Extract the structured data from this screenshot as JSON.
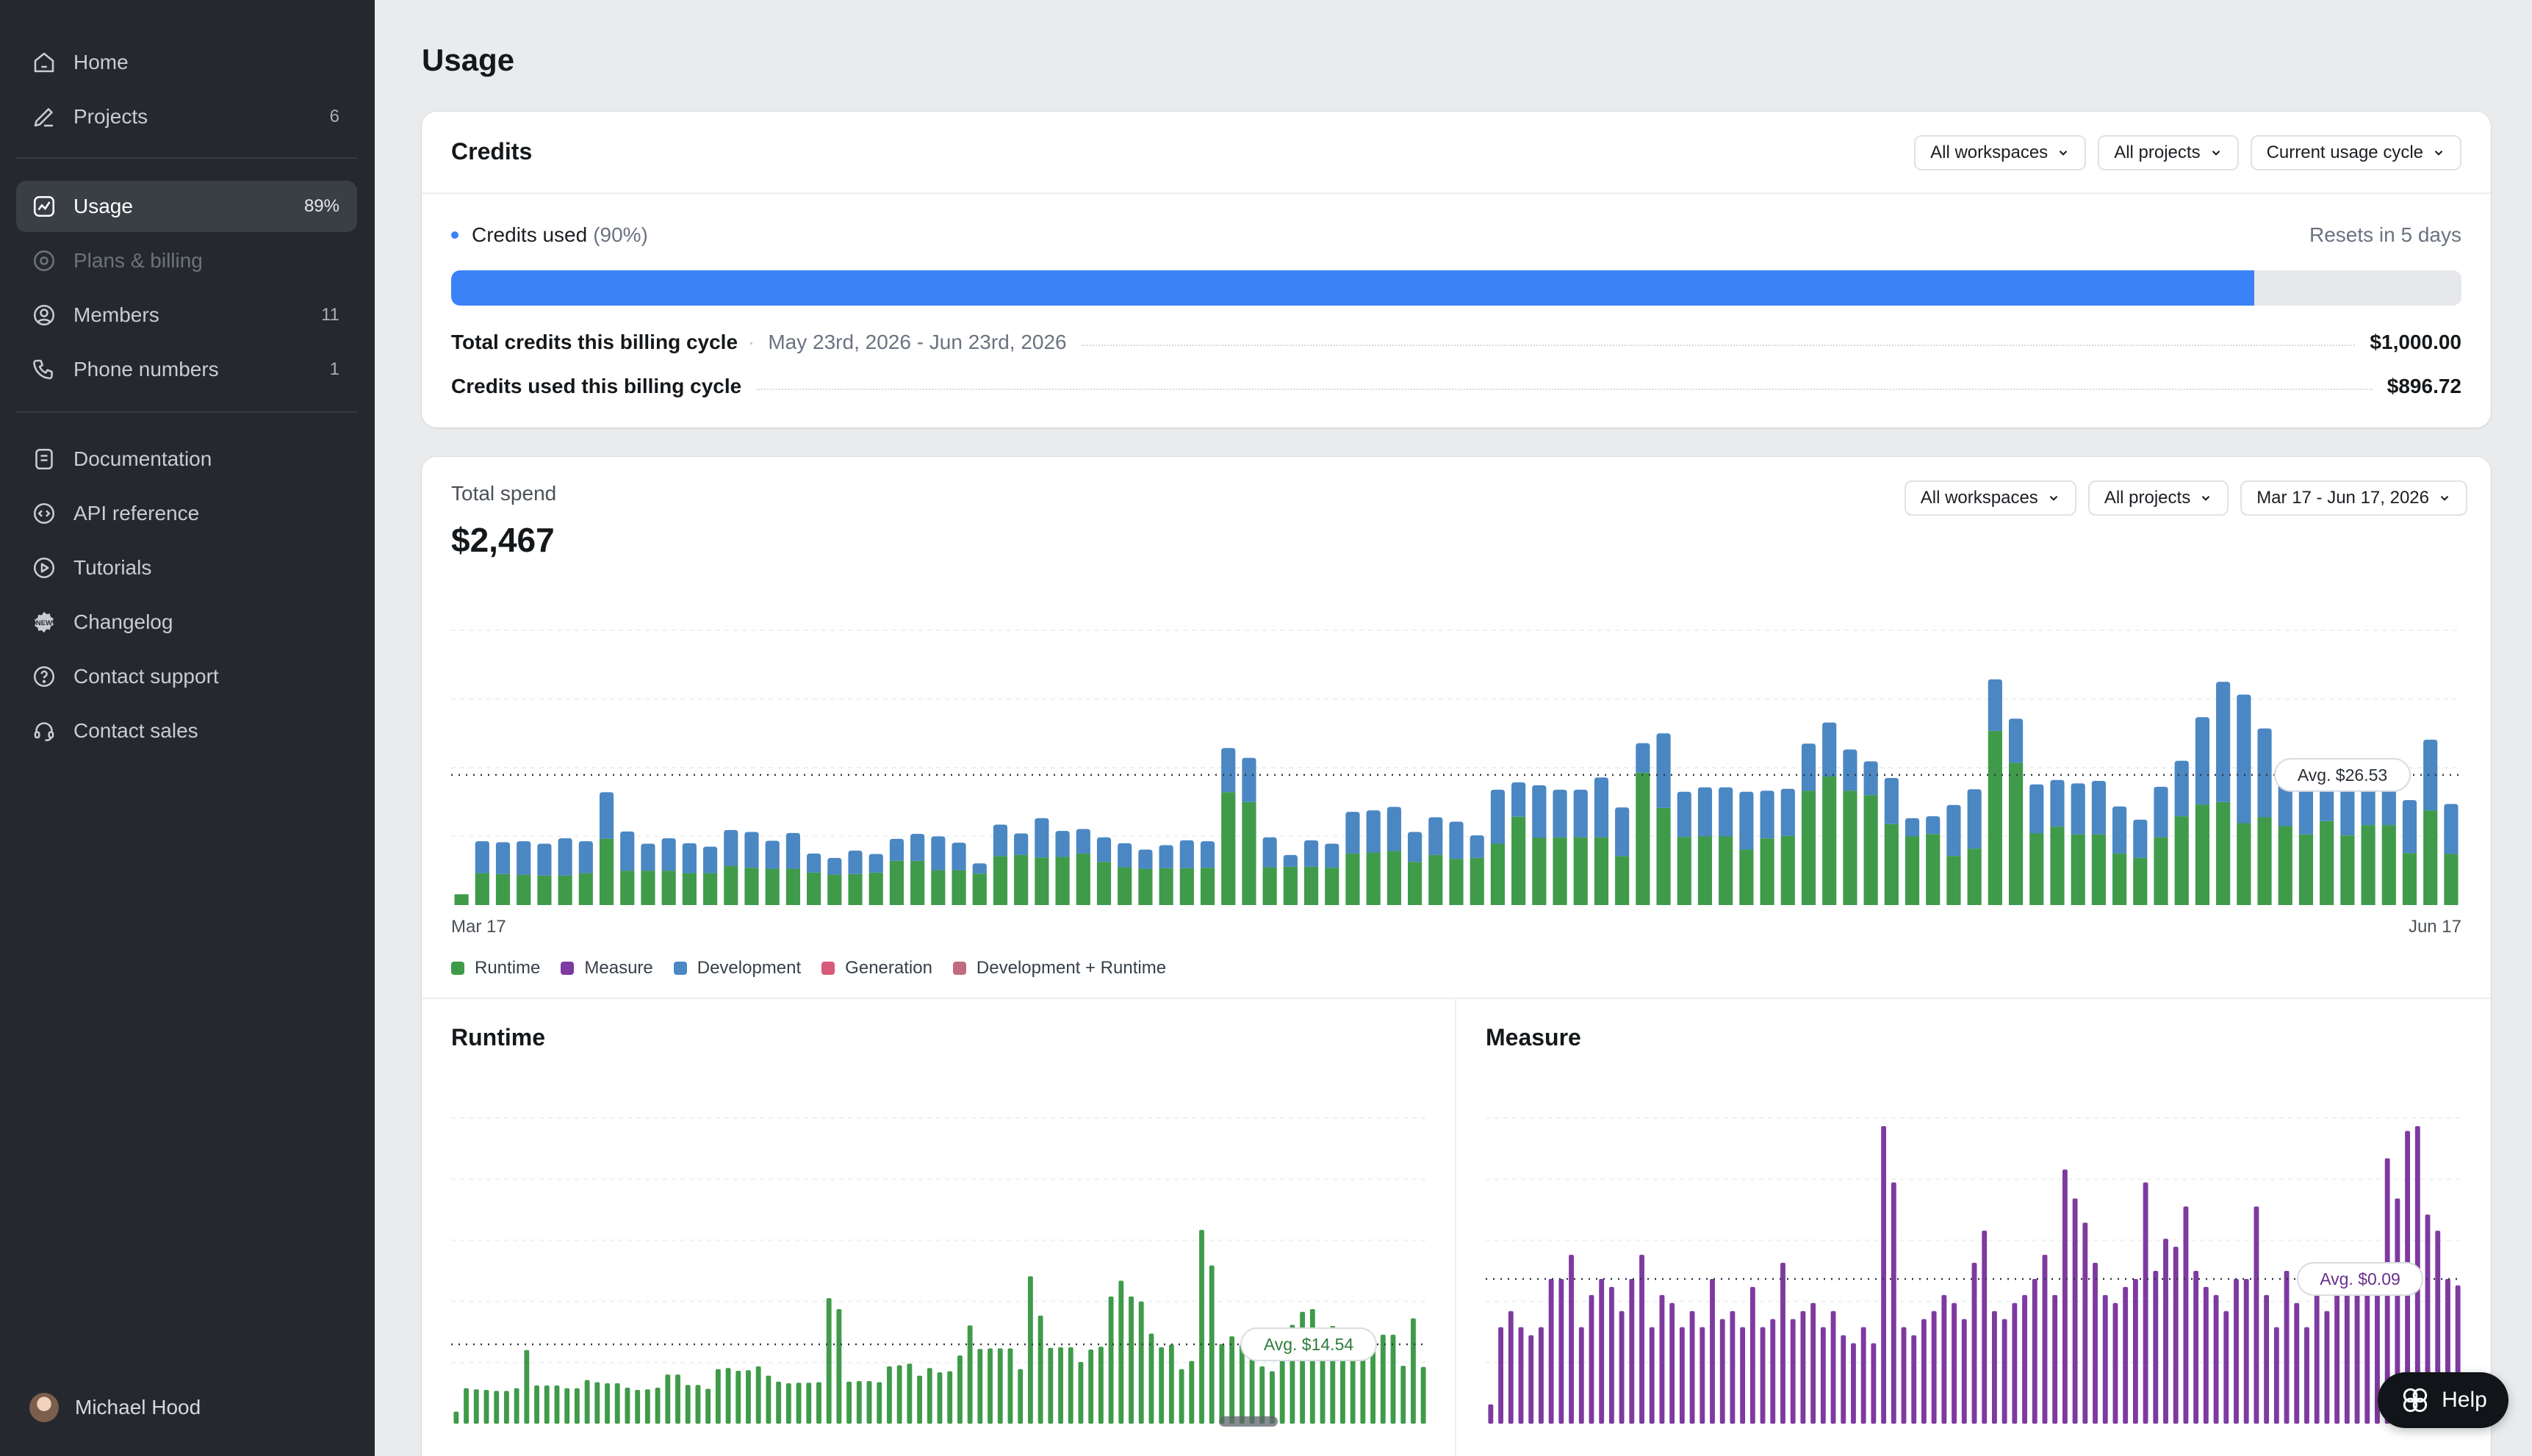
{
  "sidebar": {
    "items": [
      {
        "label": "Home",
        "count": "",
        "icon": "home-icon"
      },
      {
        "label": "Projects",
        "count": "6",
        "icon": "pencil-icon"
      },
      {
        "label": "Usage",
        "count": "89%",
        "icon": "chart-icon",
        "active": true
      },
      {
        "label": "Plans & billing",
        "count": "",
        "icon": "billing-icon",
        "disabled": true
      },
      {
        "label": "Members",
        "count": "11",
        "icon": "user-circle-icon"
      },
      {
        "label": "Phone numbers",
        "count": "1",
        "icon": "phone-icon"
      },
      {
        "label": "Documentation",
        "count": "",
        "icon": "document-icon"
      },
      {
        "label": "API reference",
        "count": "",
        "icon": "code-icon"
      },
      {
        "label": "Tutorials",
        "count": "",
        "icon": "play-icon"
      },
      {
        "label": "Changelog",
        "count": "",
        "icon": "new-badge-icon"
      },
      {
        "label": "Contact support",
        "count": "",
        "icon": "question-icon"
      },
      {
        "label": "Contact sales",
        "count": "",
        "icon": "headset-icon"
      }
    ],
    "user_name": "Michael Hood"
  },
  "page": {
    "title": "Usage"
  },
  "credits": {
    "title": "Credits",
    "filters": [
      "All workspaces",
      "All projects",
      "Current usage cycle"
    ],
    "used_label": "Credits used",
    "used_pct_text": "(90%)",
    "used_fraction": 0.897,
    "resets": "Resets in 5 days",
    "total_label": "Total credits this billing cycle",
    "total_range": "May 23rd, 2026 - Jun 23rd, 2026",
    "total_value": "$1,000.00",
    "used_cycle_label": "Credits used this billing cycle",
    "used_cycle_value": "$896.72"
  },
  "spend": {
    "label": "Total spend",
    "value": "$2,467",
    "filters": [
      "All workspaces",
      "All projects",
      "Mar 17 - Jun 17, 2026"
    ],
    "x_start": "Mar 17",
    "x_end": "Jun 17",
    "legend": [
      {
        "name": "Runtime",
        "color": "#3f9b4a"
      },
      {
        "name": "Measure",
        "color": "#7e3aa0"
      },
      {
        "name": "Development",
        "color": "#4b87c3"
      },
      {
        "name": "Generation",
        "color": "#d85a7a"
      },
      {
        "name": "Development + Runtime",
        "color": "#c26a7d"
      }
    ],
    "runtime_title": "Runtime",
    "measure_title": "Measure"
  },
  "help": {
    "label": "Help"
  },
  "colors": {
    "accent": "#3b82f6",
    "runtime": "#3f9b4a",
    "development": "#4b87c3",
    "measure": "#7e3aa0",
    "sidebar": "#25292e"
  },
  "chart_data": [
    {
      "type": "bar",
      "title": "Total spend",
      "stacked": true,
      "x_range": [
        "Mar 17",
        "Jun 17"
      ],
      "avg_label": "Avg. $26.53",
      "avg": 26.53,
      "ylim": [
        0,
        56
      ],
      "series": [
        {
          "name": "Runtime",
          "values": [
            2.2,
            6.5,
            6.3,
            6.2,
            6,
            6,
            6.5,
            13.5,
            7,
            7,
            7,
            6.5,
            6.5,
            8,
            7.6,
            7.4,
            7.4,
            6.6,
            6.2,
            6.3,
            6.6,
            9,
            9,
            7.1,
            7.1,
            6.4,
            10,
            10.2,
            9.7,
            9.8,
            10.5,
            8.8,
            7.7,
            7.4,
            7.5,
            7.5,
            7.6,
            23,
            21,
            7.7,
            7.8,
            7.8,
            7.6,
            10.5,
            10.7,
            11,
            8.8,
            10.2,
            9.4,
            9.6,
            12.5,
            18,
            13.7,
            13.8,
            13.8,
            13.8,
            10,
            27,
            19.8,
            13.9,
            14,
            14,
            11.3,
            13.6,
            14.1,
            23.3,
            26.2,
            23.3,
            22.4,
            16.5,
            14,
            14.5,
            10,
            11.5,
            35.5,
            29,
            14.6,
            16,
            14.4,
            14.4,
            10.5,
            9.6,
            13.8,
            18.1,
            20.5,
            21,
            16.7,
            17.9,
            16.1,
            14.4,
            17.1,
            14.2,
            16.3,
            16.3,
            10.6,
            19.3,
            10.4
          ]
        },
        {
          "name": "Development",
          "values": [
            0,
            6.5,
            6.5,
            6.8,
            6.5,
            7.6,
            6.5,
            9.5,
            8,
            5.5,
            6.6,
            6.1,
            5.4,
            7.3,
            7.3,
            5.7,
            7.3,
            3.9,
            3.4,
            4.8,
            3.8,
            4.5,
            5.5,
            6.9,
            5.6,
            2.1,
            6.4,
            4.4,
            8,
            5.3,
            5,
            5,
            4.9,
            3.9,
            4.7,
            5.7,
            5.4,
            9,
            9,
            6.1,
            2.4,
            5.4,
            4.9,
            8.5,
            8.6,
            9,
            6.1,
            7.7,
            7.6,
            4.6,
            11,
            7,
            10.7,
            9.7,
            9.7,
            12.2,
            9.9,
            6,
            15.2,
            9.2,
            10,
            10,
            11.8,
            9.7,
            9.6,
            9.6,
            11,
            8.4,
            6.9,
            9.4,
            3.7,
            3.6,
            10.4,
            12.1,
            10.5,
            9,
            10,
            9.5,
            10.4,
            10.9,
            9.6,
            7.8,
            10.3,
            11.3,
            17.8,
            24.5,
            26.2,
            18.1,
            11.3,
            10.3,
            11.5,
            10.4,
            10.6,
            12.5,
            10.8,
            14.4,
            10.2
          ]
        }
      ]
    },
    {
      "type": "bar",
      "title": "Runtime",
      "avg_label": "Avg. $14.54",
      "avg": 14.54,
      "ylim": [
        0,
        56
      ],
      "values": [
        2.2,
        6.5,
        6.3,
        6.2,
        6,
        6,
        6.5,
        13.5,
        7,
        7,
        7,
        6.5,
        6.5,
        8,
        7.6,
        7.4,
        7.4,
        6.6,
        6.2,
        6.3,
        6.6,
        9,
        9,
        7.1,
        7.1,
        6.4,
        10,
        10.2,
        9.7,
        9.8,
        10.5,
        8.8,
        7.7,
        7.4,
        7.5,
        7.5,
        7.6,
        23,
        21,
        7.7,
        7.8,
        7.8,
        7.6,
        10.5,
        10.7,
        11,
        8.8,
        10.2,
        9.4,
        9.6,
        12.5,
        18,
        13.7,
        13.8,
        13.8,
        13.8,
        10,
        27,
        19.8,
        13.9,
        14,
        14,
        11.3,
        13.6,
        14.1,
        23.3,
        26.2,
        23.3,
        22.4,
        16.5,
        14,
        14.5,
        10,
        11.5,
        35.5,
        29,
        14.6,
        16,
        14.4,
        14.4,
        10.5,
        9.6,
        13.8,
        18.1,
        20.5,
        21,
        16.7,
        17.9,
        16.1,
        14.4,
        17.1,
        14.2,
        16.3,
        16.3,
        10.6,
        19.3,
        10.4
      ]
    },
    {
      "type": "bar",
      "title": "Measure",
      "avg_label": "Avg. $0.09",
      "avg": 0.09,
      "ylim": [
        0,
        0.19
      ],
      "values": [
        0.012,
        0.06,
        0.07,
        0.06,
        0.055,
        0.06,
        0.09,
        0.09,
        0.105,
        0.06,
        0.08,
        0.09,
        0.085,
        0.07,
        0.09,
        0.105,
        0.06,
        0.08,
        0.075,
        0.06,
        0.07,
        0.06,
        0.09,
        0.065,
        0.07,
        0.06,
        0.085,
        0.06,
        0.065,
        0.1,
        0.065,
        0.07,
        0.075,
        0.06,
        0.07,
        0.055,
        0.05,
        0.06,
        0.05,
        0.185,
        0.15,
        0.06,
        0.055,
        0.065,
        0.07,
        0.08,
        0.075,
        0.065,
        0.1,
        0.12,
        0.07,
        0.065,
        0.075,
        0.08,
        0.09,
        0.105,
        0.08,
        0.158,
        0.14,
        0.125,
        0.1,
        0.08,
        0.075,
        0.085,
        0.09,
        0.15,
        0.095,
        0.115,
        0.11,
        0.135,
        0.095,
        0.085,
        0.08,
        0.07,
        0.09,
        0.09,
        0.135,
        0.08,
        0.06,
        0.095,
        0.075,
        0.06,
        0.09,
        0.07,
        0.08,
        0.09,
        0.086,
        0.095,
        0.08,
        0.165,
        0.14,
        0.182,
        0.185,
        0.13,
        0.12,
        0.09,
        0.086
      ]
    }
  ]
}
